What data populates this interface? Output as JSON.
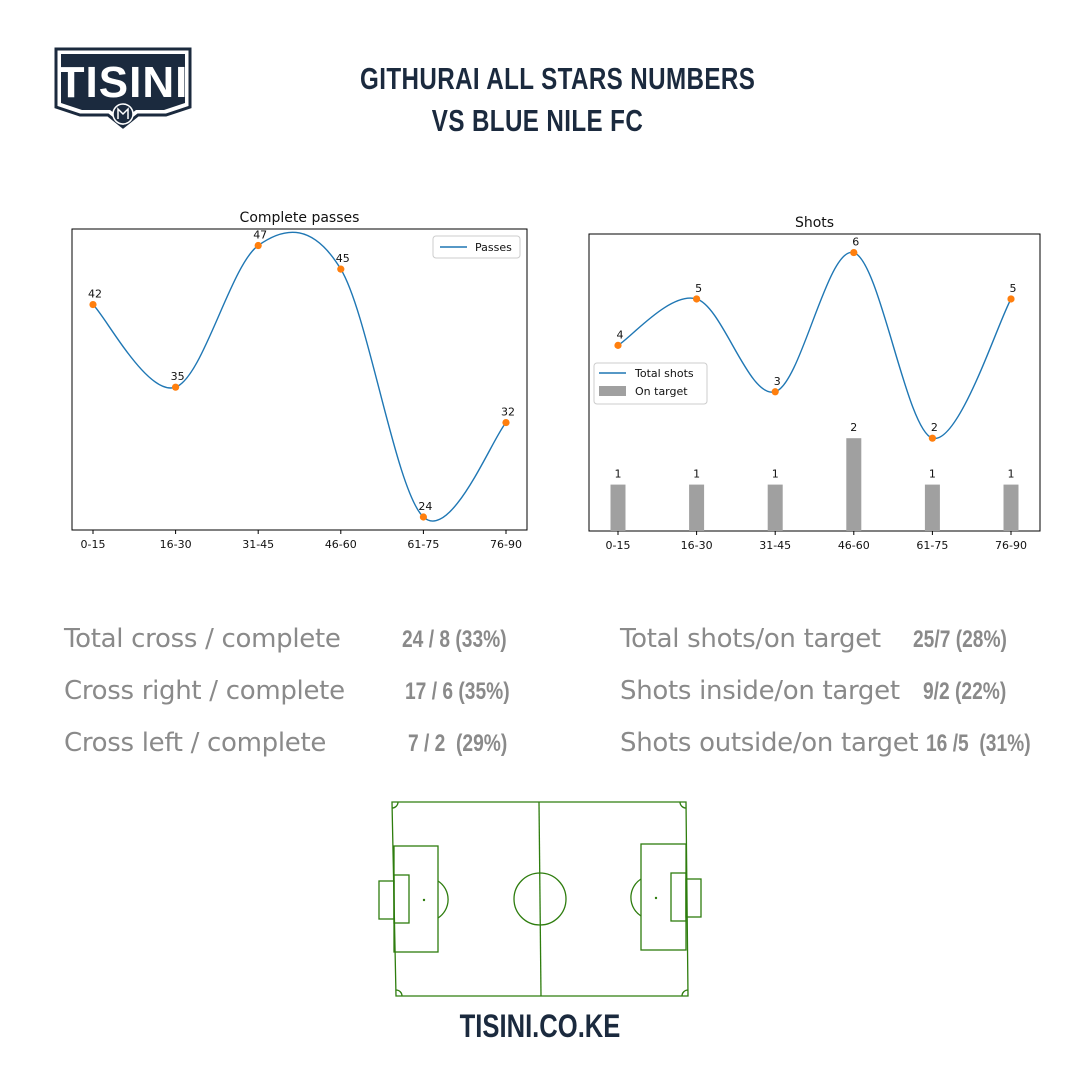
{
  "brand": {
    "logo_text": "TISINI",
    "website": "TISINI.CO.KE",
    "navy": "#1b2a3e"
  },
  "header": {
    "title_line1": "GITHURAI ALL STARS NUMBERS",
    "title_line2": "VS BLUE NILE FC"
  },
  "chart_data": [
    {
      "type": "line",
      "title": "Complete passes",
      "categories": [
        "0-15",
        "16-30",
        "31-45",
        "46-60",
        "61-75",
        "76-90"
      ],
      "series": [
        {
          "name": "Passes",
          "values": [
            42,
            35,
            47,
            45,
            24,
            32
          ],
          "color": "#1f77b4"
        }
      ],
      "point_color": "#ff7f0e",
      "legend": "top-right",
      "ylim": [
        22.9,
        48.4
      ]
    },
    {
      "type": "line",
      "title": "Shots",
      "categories": [
        "0-15",
        "16-30",
        "31-45",
        "46-60",
        "61-75",
        "76-90"
      ],
      "series": [
        {
          "name": "Total shots",
          "kind": "line",
          "values": [
            4,
            5,
            3,
            6,
            2,
            5
          ],
          "color": "#1f77b4"
        },
        {
          "name": "On target",
          "kind": "bar",
          "values": [
            1,
            1,
            1,
            2,
            1,
            1
          ],
          "color": "#a0a0a0"
        }
      ],
      "point_color": "#ff7f0e",
      "legend": "center-left",
      "ylim": [
        0,
        6.4
      ]
    }
  ],
  "stats": {
    "left": [
      {
        "label": "Total cross / complete",
        "value": "24 / 8 (33%)"
      },
      {
        "label": "Cross right / complete",
        "value": "17 / 6 (35%)"
      },
      {
        "label": "Cross left / complete",
        "value": "7 / 2  (29%)"
      }
    ],
    "right": [
      {
        "label": "Total shots/on target",
        "value": "25/7 (28%)"
      },
      {
        "label": "Shots inside/on target",
        "value": "9/2 (22%)"
      },
      {
        "label": "Shots outside/on target",
        "value": "16 /5  (31%)"
      }
    ]
  },
  "pitch": {
    "line_color": "#2e7d0e"
  }
}
